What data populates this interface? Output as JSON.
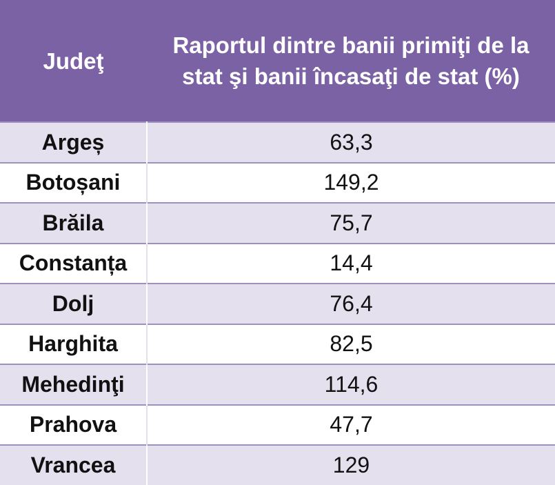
{
  "table": {
    "header": {
      "county": "Judeţ",
      "ratio": "Raportul dintre banii primiţi de la stat şi banii încasaţi de stat (%)"
    },
    "rows": [
      {
        "county": "Argeș",
        "value": "63,3"
      },
      {
        "county": "Botoșani",
        "value": "149,2"
      },
      {
        "county": "Brăila",
        "value": "75,7"
      },
      {
        "county": "Constanța",
        "value": "14,4"
      },
      {
        "county": "Dolj",
        "value": "76,4"
      },
      {
        "county": "Harghita",
        "value": "82,5"
      },
      {
        "county": "Mehedinţi",
        "value": "114,6"
      },
      {
        "county": "Prahova",
        "value": "47,7"
      },
      {
        "county": "Vrancea",
        "value": "129"
      }
    ]
  },
  "colors": {
    "header_bg": "#7b62a5",
    "row_alt_bg": "#e5e0ee",
    "border": "#9f8fbf"
  }
}
